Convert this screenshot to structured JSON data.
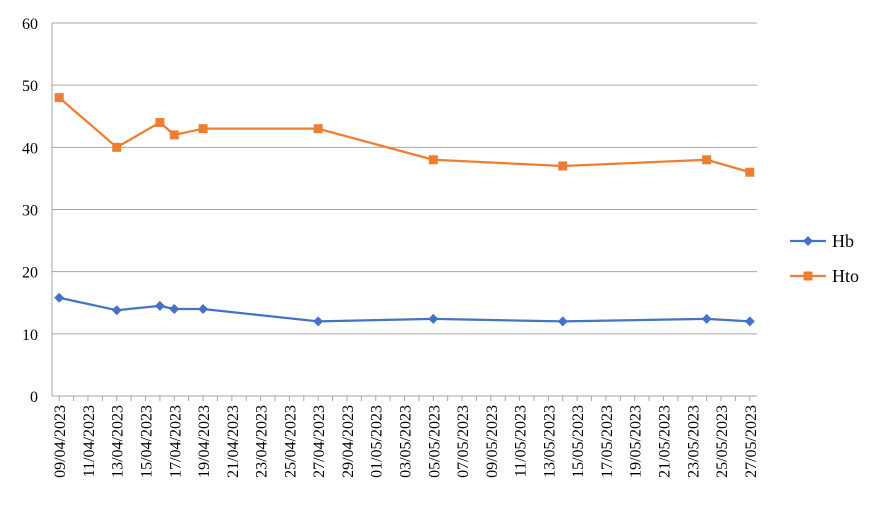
{
  "chart_data": {
    "type": "line",
    "x_type": "date",
    "x_ticks": [
      "09/04/2023",
      "11/04/2023",
      "13/04/2023",
      "15/04/2023",
      "17/04/2023",
      "19/04/2023",
      "21/04/2023",
      "23/04/2023",
      "25/04/2023",
      "27/04/2023",
      "29/04/2023",
      "01/05/2023",
      "03/05/2023",
      "05/05/2023",
      "07/05/2023",
      "09/05/2023",
      "11/05/2023",
      "13/05/2023",
      "15/05/2023",
      "17/05/2023",
      "19/05/2023",
      "21/05/2023",
      "23/05/2023",
      "25/05/2023",
      "27/05/2023"
    ],
    "xlim": [
      "09/04/2023",
      "27/05/2023"
    ],
    "ylim": [
      0,
      60
    ],
    "y_ticks": [
      0,
      10,
      20,
      30,
      40,
      50,
      60
    ],
    "grid": "horizontal",
    "legend_position": "right",
    "series": [
      {
        "name": "Hb",
        "color": "#4472C4",
        "marker": "diamond",
        "x": [
          "09/04/2023",
          "13/04/2023",
          "16/04/2023",
          "17/04/2023",
          "19/04/2023",
          "27/04/2023",
          "05/05/2023",
          "14/05/2023",
          "24/05/2023",
          "27/05/2023"
        ],
        "values": [
          15.8,
          13.8,
          14.5,
          14.0,
          14.0,
          12.0,
          12.4,
          12.0,
          12.4,
          12.0
        ]
      },
      {
        "name": "Hto",
        "color": "#ED7D31",
        "marker": "square",
        "x": [
          "09/04/2023",
          "13/04/2023",
          "16/04/2023",
          "17/04/2023",
          "19/04/2023",
          "27/04/2023",
          "05/05/2023",
          "14/05/2023",
          "24/05/2023",
          "27/05/2023"
        ],
        "values": [
          48,
          40,
          44,
          42,
          43,
          43,
          38,
          37,
          38,
          36
        ]
      }
    ]
  }
}
